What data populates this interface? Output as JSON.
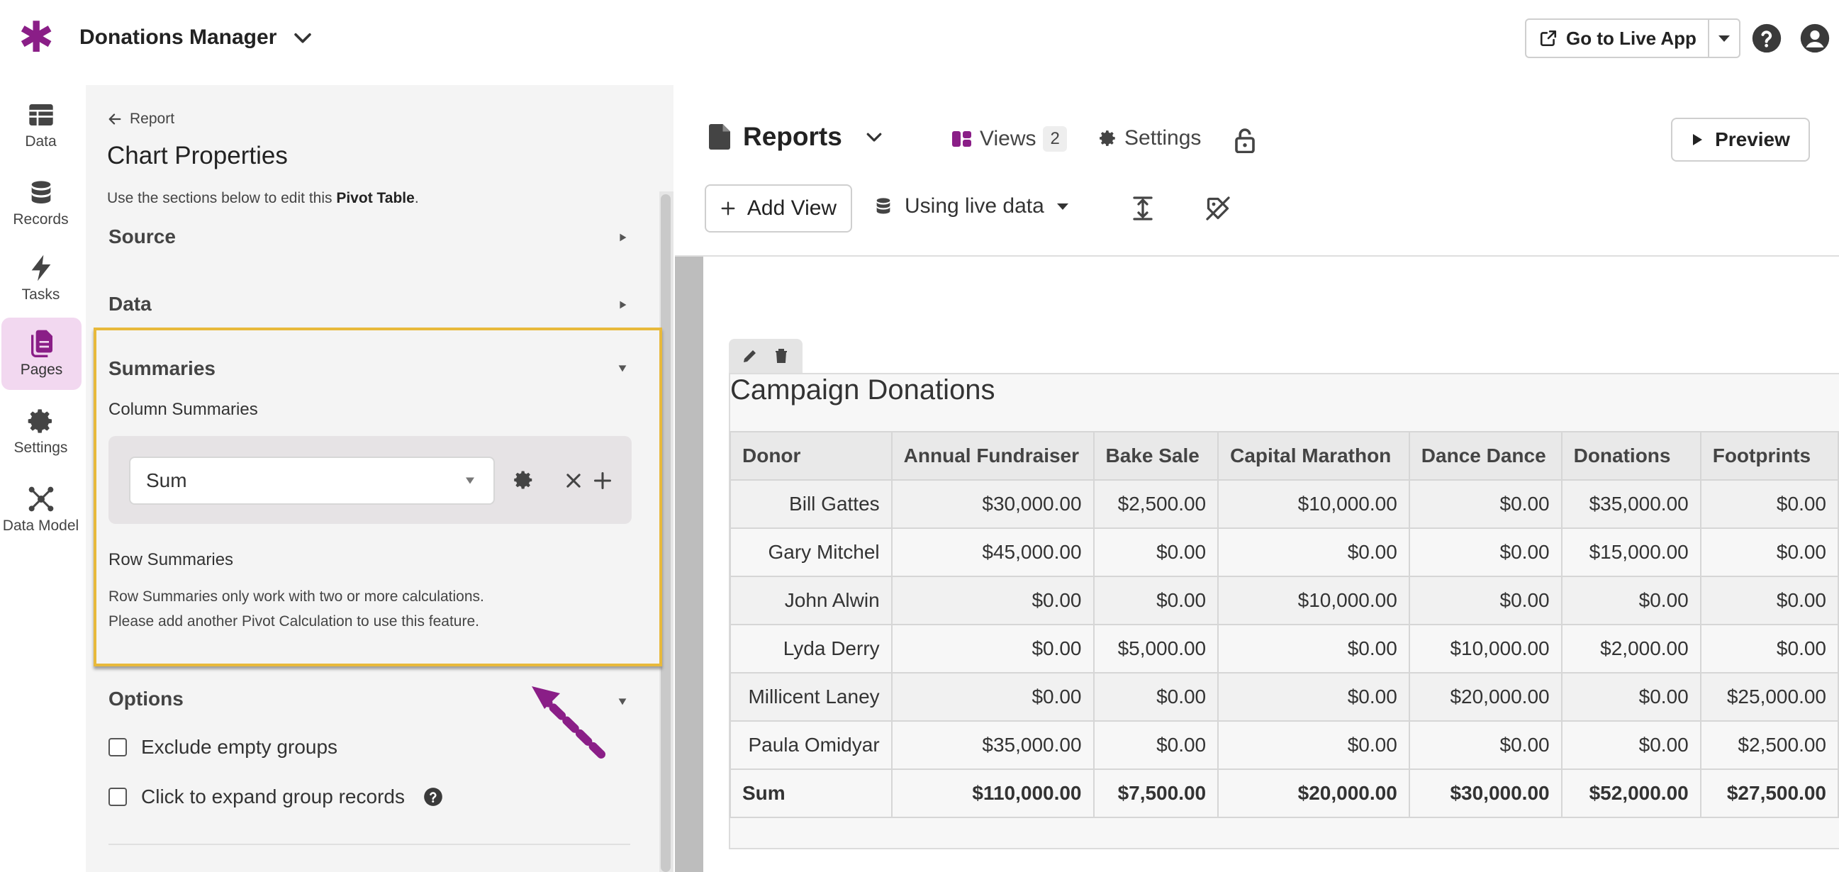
{
  "app": {
    "title": "Donations Manager",
    "live_app_label": "Go to Live App",
    "accent_color": "#8a1e87",
    "highlight_color": "#e8b93b"
  },
  "nav": [
    {
      "label": "Data",
      "icon": "table-icon"
    },
    {
      "label": "Records",
      "icon": "database-icon"
    },
    {
      "label": "Tasks",
      "icon": "bolt-icon"
    },
    {
      "label": "Pages",
      "icon": "pages-icon",
      "active": true
    },
    {
      "label": "Settings",
      "icon": "gear-icon"
    },
    {
      "label": "Data Model",
      "icon": "data-model-icon"
    }
  ],
  "props": {
    "back_label": "Report",
    "title": "Chart Properties",
    "desc_prefix": "Use the sections below to edit this ",
    "desc_bold": "Pivot Table",
    "desc_suffix": ".",
    "sections": {
      "source": "Source",
      "data": "Data",
      "summaries": "Summaries",
      "options": "Options"
    },
    "column_summaries_label": "Column Summaries",
    "sum_select_value": "Sum",
    "row_summaries_label": "Row Summaries",
    "row_summaries_note_1": "Row Summaries only work with two or more calculations.",
    "row_summaries_note_2": "Please add another Pivot Calculation to use this feature.",
    "options": {
      "exclude_empty": "Exclude empty groups",
      "expand_group": "Click to expand group records"
    }
  },
  "page": {
    "title": "Reports",
    "views_label": "Views",
    "views_count": "2",
    "settings_label": "Settings",
    "preview_label": "Preview",
    "add_view_label": "Add View",
    "data_mode_label": "Using live data"
  },
  "chart_data": {
    "type": "table",
    "title": "Campaign Donations",
    "columns": [
      "Donor",
      "Annual Fundraiser",
      "Bake Sale",
      "Capital Marathon",
      "Dance Dance",
      "Donations",
      "Footprints"
    ],
    "rows": [
      [
        "Bill Gattes",
        "$30,000.00",
        "$2,500.00",
        "$10,000.00",
        "$0.00",
        "$35,000.00",
        "$0.00"
      ],
      [
        "Gary Mitchel",
        "$45,000.00",
        "$0.00",
        "$0.00",
        "$0.00",
        "$15,000.00",
        "$0.00"
      ],
      [
        "John Alwin",
        "$0.00",
        "$0.00",
        "$10,000.00",
        "$0.00",
        "$0.00",
        "$0.00"
      ],
      [
        "Lyda Derry",
        "$0.00",
        "$5,000.00",
        "$0.00",
        "$10,000.00",
        "$2,000.00",
        "$0.00"
      ],
      [
        "Millicent Laney",
        "$0.00",
        "$0.00",
        "$0.00",
        "$20,000.00",
        "$0.00",
        "$25,000.00"
      ],
      [
        "Paula Omidyar",
        "$35,000.00",
        "$0.00",
        "$0.00",
        "$0.00",
        "$0.00",
        "$2,500.00"
      ]
    ],
    "summary_row": [
      "Sum",
      "$110,000.00",
      "$7,500.00",
      "$20,000.00",
      "$30,000.00",
      "$52,000.00",
      "$27,500.00"
    ]
  }
}
